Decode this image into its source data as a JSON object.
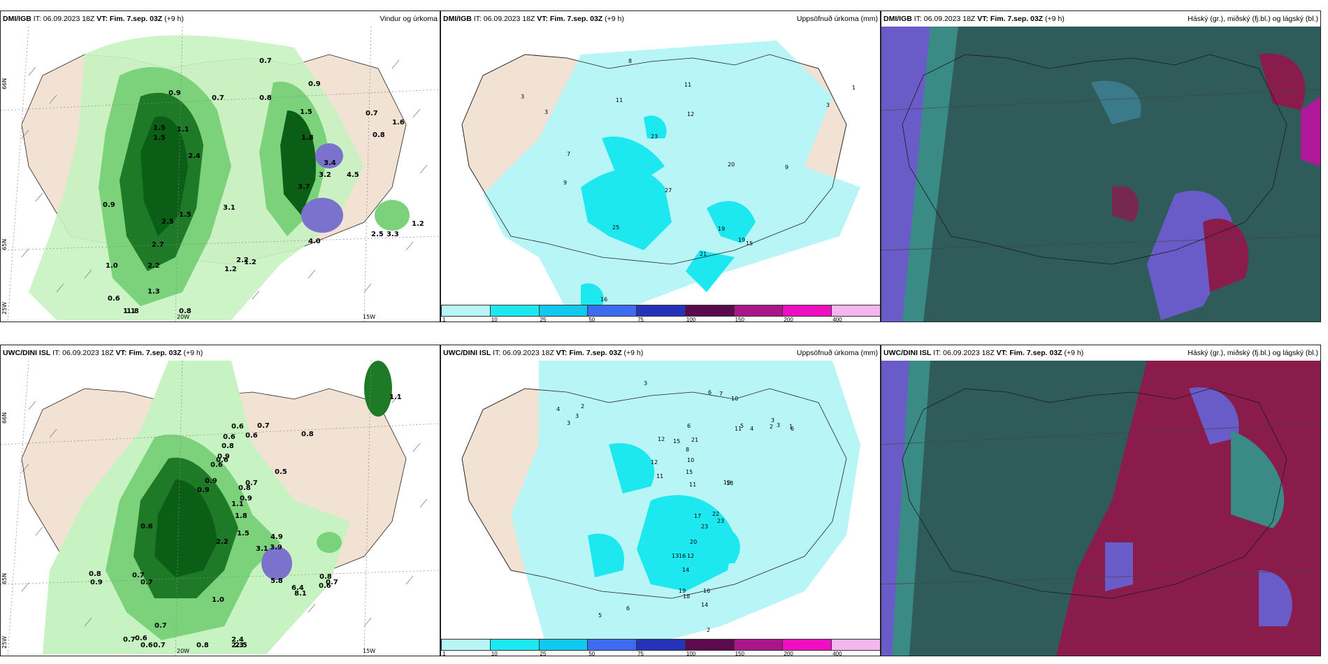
{
  "panels": [
    {
      "id": "p1",
      "model": "DMI/IGB",
      "it": " IT: 06.09.2023 18Z ",
      "vt": "VT: Fim. 7.sep. 03Z",
      "lead": " (+9 h)",
      "title": "Vindur og úrkoma",
      "labels": [
        "0.7",
        "0.9",
        "0.7",
        "0.8",
        "0.9",
        "1.5",
        "1.1",
        "1.5",
        "1.5",
        "2.4",
        "1.8",
        "3.4",
        "3.2",
        "4.5",
        "0.7",
        "0.8",
        "1.6",
        "0.9",
        "3.1",
        "1.5",
        "2.5",
        "2.7",
        "2.2",
        "1.2",
        "3.7",
        "1.0",
        "2.2",
        "1.2",
        "1.3",
        "0.6",
        "1.1",
        "1.8",
        "0.8",
        "4.0",
        "2.5",
        "3.3",
        "1.2"
      ],
      "axis": [
        "66N",
        "65N",
        "25W",
        "20W",
        "15W",
        "66N"
      ]
    },
    {
      "id": "p2",
      "model": "DMI/IGB",
      "it": " IT: 06.09.2023 18Z ",
      "vt": "VT: Fim. 7.sep. 03Z",
      "lead": " (+9 h)",
      "title": "Uppsöfnuð úrkoma (mm)",
      "labels": [
        "8",
        "11",
        "3",
        "3",
        "11",
        "12",
        "23",
        "7",
        "20",
        "9",
        "9",
        "27",
        "25",
        "19",
        "15",
        "21",
        "19",
        "16",
        "1",
        "3"
      ]
    },
    {
      "id": "p3",
      "model": "DMI/IGB",
      "it": " IT: 06.09.2023 18Z ",
      "vt": "VT: Fim. 7.sep. 03Z",
      "lead": " (+9 h)",
      "title": "Háský (gr.), miðský (fj.bl.) og lágský (bl.)"
    },
    {
      "id": "p4",
      "model": "UWC/DINI ISL",
      "it": " IT: 06.09.2023 18Z ",
      "vt": "VT: Fim. 7.sep. 03Z",
      "lead": " (+9 h)",
      "title": "",
      "labels": [
        "1.1",
        "0.8",
        "0.6",
        "0.6",
        "0.7",
        "0.6",
        "0.8",
        "0.9",
        "0.6",
        "0.6",
        "0.5",
        "0.9",
        "0.9",
        "0.7",
        "0.8",
        "0.9",
        "1.1",
        "1.8",
        "0.6",
        "1.5",
        "2.2",
        "3.1",
        "4.9",
        "3.9",
        "0.7",
        "0.8",
        "0.9",
        "0.7",
        "5.8",
        "6.4",
        "8.1",
        "0.8",
        "0.6",
        "0.7",
        "1.0",
        "0.7",
        "0.6",
        "0.7",
        "2.4",
        "2.3",
        "2.5",
        "0.8",
        "0.7",
        "0.6"
      ],
      "axis": [
        "66N",
        "65N",
        "25W",
        "20W",
        "15W"
      ]
    },
    {
      "id": "p5",
      "model": "UWC/DINI ISL",
      "it": " IT: 06.09.2023 18Z ",
      "vt": "VT: Fim. 7.sep. 03Z",
      "lead": " (+9 h)",
      "title": "Uppsöfnuð úrkoma (mm)",
      "labels": [
        "3",
        "2",
        "4",
        "3",
        "3",
        "6",
        "7",
        "10",
        "11",
        "6",
        "5",
        "4",
        "2",
        "3",
        "3",
        "1",
        "6",
        "12",
        "15",
        "21",
        "8",
        "10",
        "12",
        "11",
        "15",
        "11",
        "19",
        "18",
        "22",
        "17",
        "23",
        "20",
        "23",
        "12",
        "16",
        "13",
        "14",
        "19",
        "18",
        "16",
        "14",
        "6",
        "5",
        "4",
        "2",
        "1",
        "1",
        "2",
        "2"
      ]
    },
    {
      "id": "p6",
      "model": "UWC/DINI ISL",
      "it": " IT: 06.09.2023 18Z ",
      "vt": "VT: Fim. 7.sep. 03Z",
      "lead": " (+9 h)",
      "title": "Háský (gr.), miðský (fj.bl.) og lágský (bl.)"
    }
  ],
  "colorbar": {
    "ticks": [
      "1",
      "10",
      "25",
      "50",
      "75",
      "100",
      "150",
      "200",
      "400"
    ],
    "colors": [
      "#b8f5f7",
      "#1de8ef",
      "#11c9ee",
      "#3d6cf0",
      "#2433b8",
      "#5c0a4e",
      "#a8168a",
      "#f00fc0",
      "#f5b6f0"
    ]
  },
  "colors": {
    "land": "#f2e2d4",
    "green_light": "#c6f3c1",
    "green_mid": "#7cd27a",
    "green_dark": "#0a5e16",
    "purple": "#7a72cc",
    "precip_light": "#b8f5f7",
    "precip_mid": "#1de8ef",
    "cloud_base": "#2f5c5a",
    "cloud_sea": "#6a5cc8",
    "cloud_high": "#8a1c4c"
  }
}
